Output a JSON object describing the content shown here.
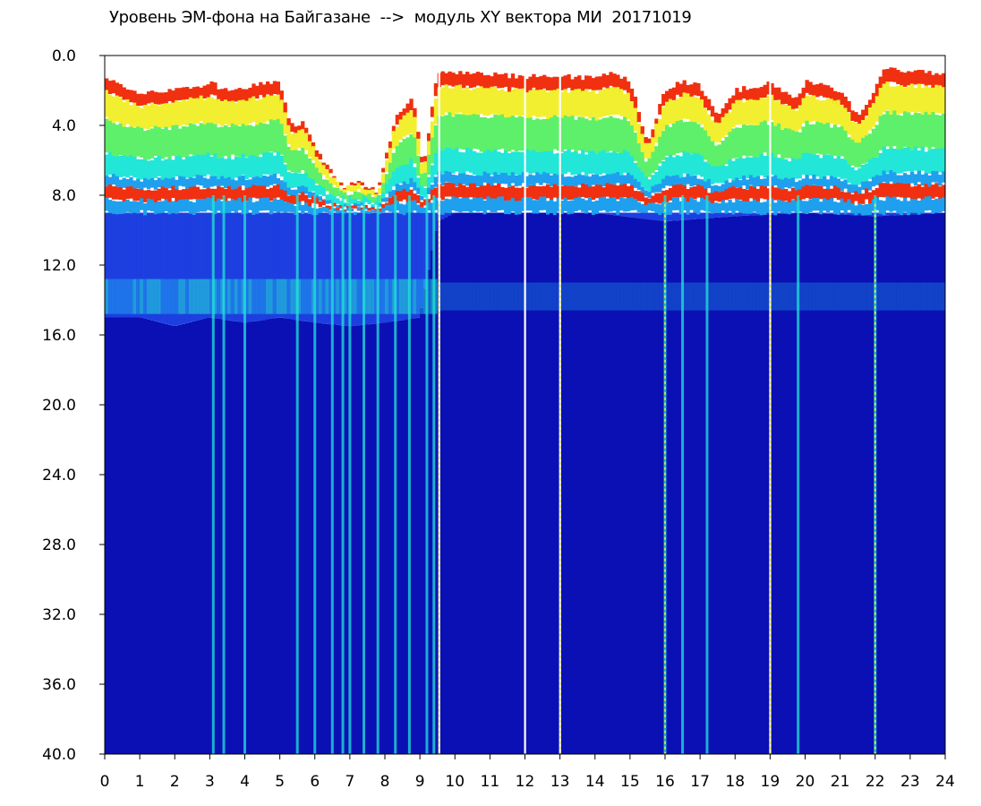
{
  "chart_data": {
    "type": "heatmap",
    "title": "Уровень ЭМ-фона на Байгазане  -->  модуль XY вектора МИ  20171019",
    "xlabel": "",
    "ylabel": "",
    "xlim": [
      0,
      24
    ],
    "ylim": [
      0.0,
      40.0
    ],
    "y_inverted": true,
    "grid": false,
    "x_ticks": [
      "0",
      "1",
      "2",
      "3",
      "4",
      "5",
      "6",
      "7",
      "8",
      "9",
      "10",
      "11",
      "12",
      "13",
      "14",
      "15",
      "16",
      "17",
      "18",
      "19",
      "20",
      "21",
      "22",
      "23",
      "24"
    ],
    "y_ticks": [
      "0.0",
      "4.0",
      "8.0",
      "12.0",
      "16.0",
      "20.0",
      "24.0",
      "28.0",
      "32.0",
      "36.0",
      "40.0"
    ],
    "colorscale": [
      "#0a10b4",
      "#1d3fe0",
      "#1fa0ee",
      "#22e6d8",
      "#5ef06a",
      "#f2ef30",
      "#f03010",
      "#ffffff"
    ],
    "upper_band_top": [
      [
        0,
        1.2
      ],
      [
        0.5,
        1.8
      ],
      [
        1,
        2.2
      ],
      [
        2,
        2.0
      ],
      [
        3,
        1.6
      ],
      [
        3.1,
        1.5
      ],
      [
        3.3,
        2.0
      ],
      [
        4,
        1.8
      ],
      [
        5,
        1.5
      ],
      [
        5.3,
        4.0
      ],
      [
        5.7,
        3.8
      ],
      [
        6.2,
        6.0
      ],
      [
        6.8,
        7.5
      ],
      [
        7.3,
        7.2
      ],
      [
        7.8,
        7.8
      ],
      [
        8.3,
        3.5
      ],
      [
        8.8,
        2.3
      ],
      [
        9.1,
        6.5
      ],
      [
        9.5,
        1.0
      ],
      [
        10,
        1.0
      ],
      [
        11,
        1.1
      ],
      [
        12,
        1.2
      ],
      [
        13,
        1.2
      ],
      [
        14,
        1.3
      ],
      [
        14.5,
        1.0
      ],
      [
        15,
        1.4
      ],
      [
        15.5,
        5.0
      ],
      [
        16,
        2.0
      ],
      [
        16.5,
        1.5
      ],
      [
        17,
        1.7
      ],
      [
        17.5,
        3.5
      ],
      [
        18,
        2.0
      ],
      [
        19,
        1.6
      ],
      [
        19.8,
        2.5
      ],
      [
        20,
        1.5
      ],
      [
        21,
        2.0
      ],
      [
        21.5,
        3.5
      ],
      [
        22,
        2.0
      ],
      [
        22.2,
        0.8
      ],
      [
        23,
        0.9
      ],
      [
        24,
        1.0
      ]
    ],
    "lower_band": [
      [
        0,
        15.0
      ],
      [
        1,
        15.0
      ],
      [
        2,
        15.5
      ],
      [
        3,
        15.0
      ],
      [
        4,
        15.3
      ],
      [
        5,
        15.0
      ],
      [
        6,
        15.3
      ],
      [
        7,
        15.5
      ],
      [
        8,
        15.3
      ],
      [
        9,
        15.0
      ],
      [
        9.5,
        9.5
      ],
      [
        10,
        9.0
      ],
      [
        12,
        9.0
      ],
      [
        14,
        9.0
      ],
      [
        16,
        9.5
      ],
      [
        18,
        9.2
      ],
      [
        20,
        9.0
      ],
      [
        22,
        9.2
      ],
      [
        24,
        9.0
      ]
    ],
    "secondary_band_depth": 14.0,
    "deep_bright_streaks": [
      3.1,
      3.4,
      4.0,
      5.5,
      6.0,
      6.5,
      6.8,
      7.0,
      7.4,
      7.8,
      8.3,
      8.7,
      9.2,
      9.4,
      16.0,
      16.5,
      17.2,
      19.8,
      22.0
    ],
    "white_gaps": [
      9.55,
      12.0,
      13.0,
      19.0
    ],
    "dotted_markers": [
      9.55,
      13.0,
      16.0,
      19.0,
      22.0
    ]
  }
}
